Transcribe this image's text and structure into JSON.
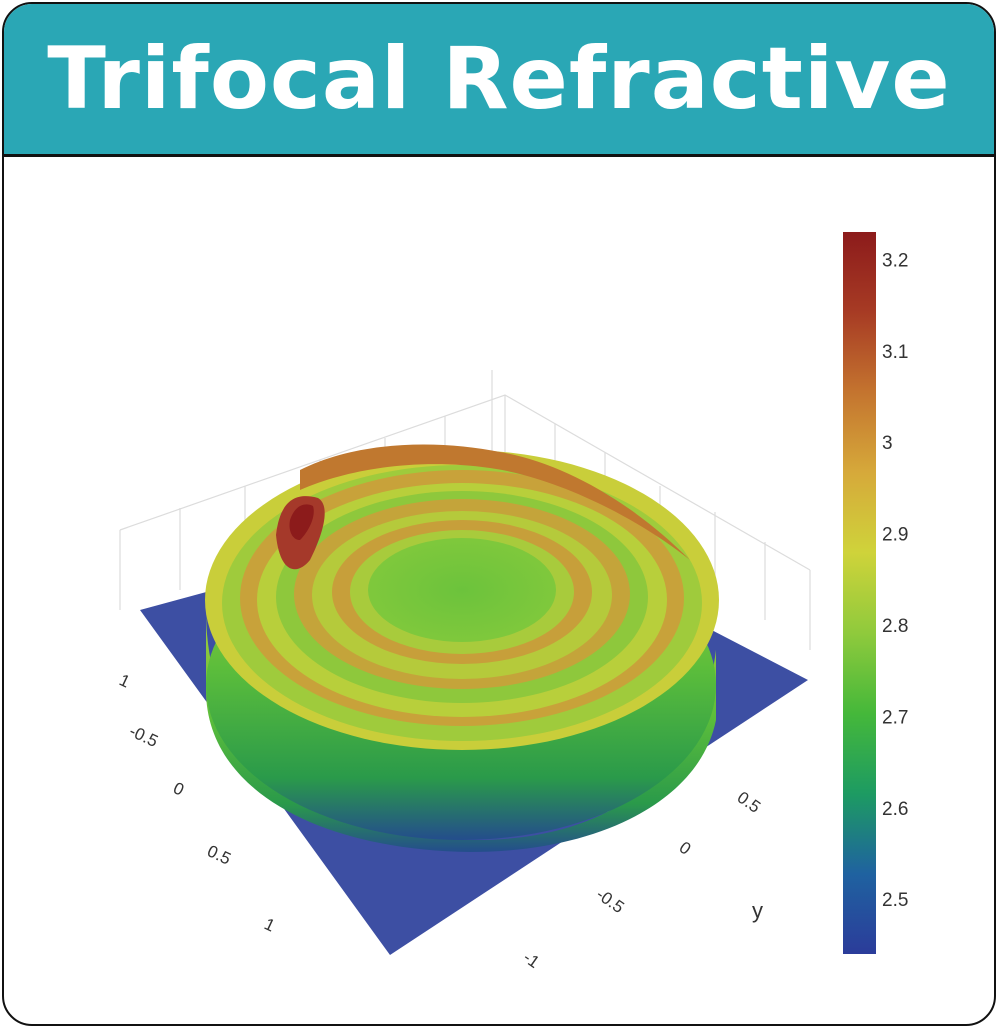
{
  "header": {
    "title": "Trifocal Refractive"
  },
  "chart_data": {
    "type": "surface3d",
    "title": "Trifocal Refractive",
    "x_axis": {
      "label": "",
      "ticks": [
        "1",
        "-0.5",
        "0",
        "0.5",
        "1"
      ]
    },
    "y_axis": {
      "label": "y",
      "ticks": [
        "0.5",
        "0",
        "-0.5",
        "-1"
      ]
    },
    "colorbar": {
      "ticks": [
        "3.2",
        "3.1",
        "3",
        "2.9",
        "2.8",
        "2.7",
        "2.6",
        "2.5"
      ],
      "tick_values": [
        3.2,
        3.1,
        3.0,
        2.9,
        2.8,
        2.7,
        2.6,
        2.5
      ],
      "range": [
        2.44,
        3.23
      ],
      "colorscale": [
        "#2b3c9a",
        "#1f62a0",
        "#1d9b62",
        "#45b83a",
        "#8fca3c",
        "#cfd33a",
        "#d6a93a",
        "#c4742f",
        "#a73b24",
        "#8c1b1b"
      ]
    },
    "surface": {
      "shape": "circular lens with concentric refractive rings on a flat base",
      "base_value": 2.47,
      "center_value": 2.8,
      "ring_peak_values": [
        3.05,
        3.08,
        3.12
      ],
      "edge_peak_value": 3.22
    }
  }
}
